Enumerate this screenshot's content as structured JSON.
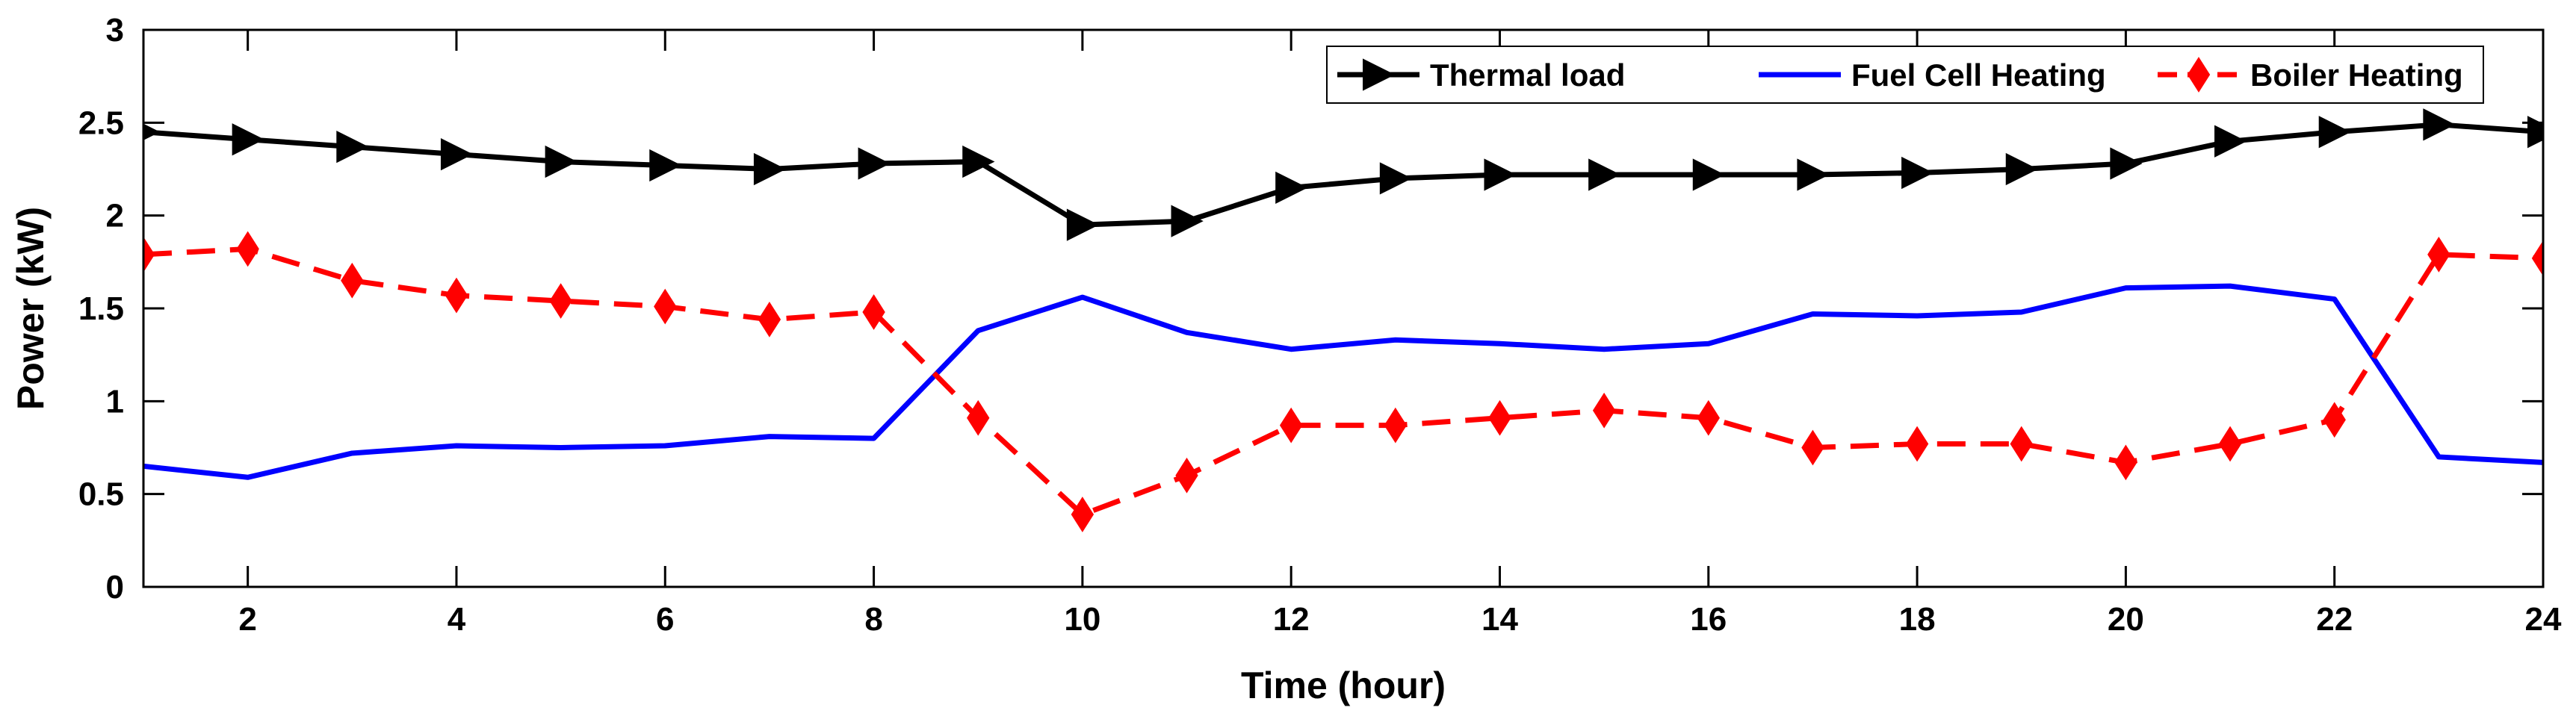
{
  "chart_data": {
    "type": "line",
    "xlabel": "Time (hour)",
    "ylabel": "Power (kW)",
    "xlim": [
      1,
      24
    ],
    "ylim": [
      0,
      3
    ],
    "xticks": [
      2,
      4,
      6,
      8,
      10,
      12,
      14,
      16,
      18,
      20,
      22,
      24
    ],
    "yticks": [
      0,
      0.5,
      1,
      1.5,
      2,
      2.5,
      3
    ],
    "ytick_labels": [
      "0",
      "0.5",
      "1",
      "1.5",
      "2",
      "2.5",
      "3"
    ],
    "grid": false,
    "legend_position": "top-right",
    "x": [
      1,
      2,
      3,
      4,
      5,
      6,
      7,
      8,
      9,
      10,
      11,
      12,
      13,
      14,
      15,
      16,
      17,
      18,
      19,
      20,
      21,
      22,
      23,
      24
    ],
    "series": [
      {
        "name": "Thermal load",
        "color": "#000000",
        "line_style": "solid",
        "marker": "triangle-right",
        "values": [
          2.45,
          2.41,
          2.37,
          2.33,
          2.29,
          2.27,
          2.25,
          2.28,
          2.29,
          1.95,
          1.97,
          2.15,
          2.2,
          2.22,
          2.22,
          2.22,
          2.22,
          2.23,
          2.25,
          2.28,
          2.4,
          2.45,
          2.49,
          2.45
        ]
      },
      {
        "name": "Fuel Cell Heating",
        "color": "#0000ff",
        "line_style": "solid",
        "marker": "none",
        "values": [
          0.65,
          0.59,
          0.72,
          0.76,
          0.75,
          0.76,
          0.81,
          0.8,
          1.38,
          1.56,
          1.37,
          1.28,
          1.33,
          1.31,
          1.28,
          1.31,
          1.47,
          1.46,
          1.48,
          1.61,
          1.62,
          1.55,
          0.7,
          0.67
        ]
      },
      {
        "name": "Boiler Heating",
        "color": "#ff0000",
        "line_style": "dashed",
        "marker": "diamond",
        "values": [
          1.79,
          1.82,
          1.65,
          1.57,
          1.54,
          1.51,
          1.44,
          1.48,
          0.91,
          0.39,
          0.6,
          0.87,
          0.87,
          0.91,
          0.95,
          0.91,
          0.75,
          0.77,
          0.77,
          0.67,
          0.77,
          0.9,
          1.79,
          1.77
        ]
      }
    ]
  }
}
